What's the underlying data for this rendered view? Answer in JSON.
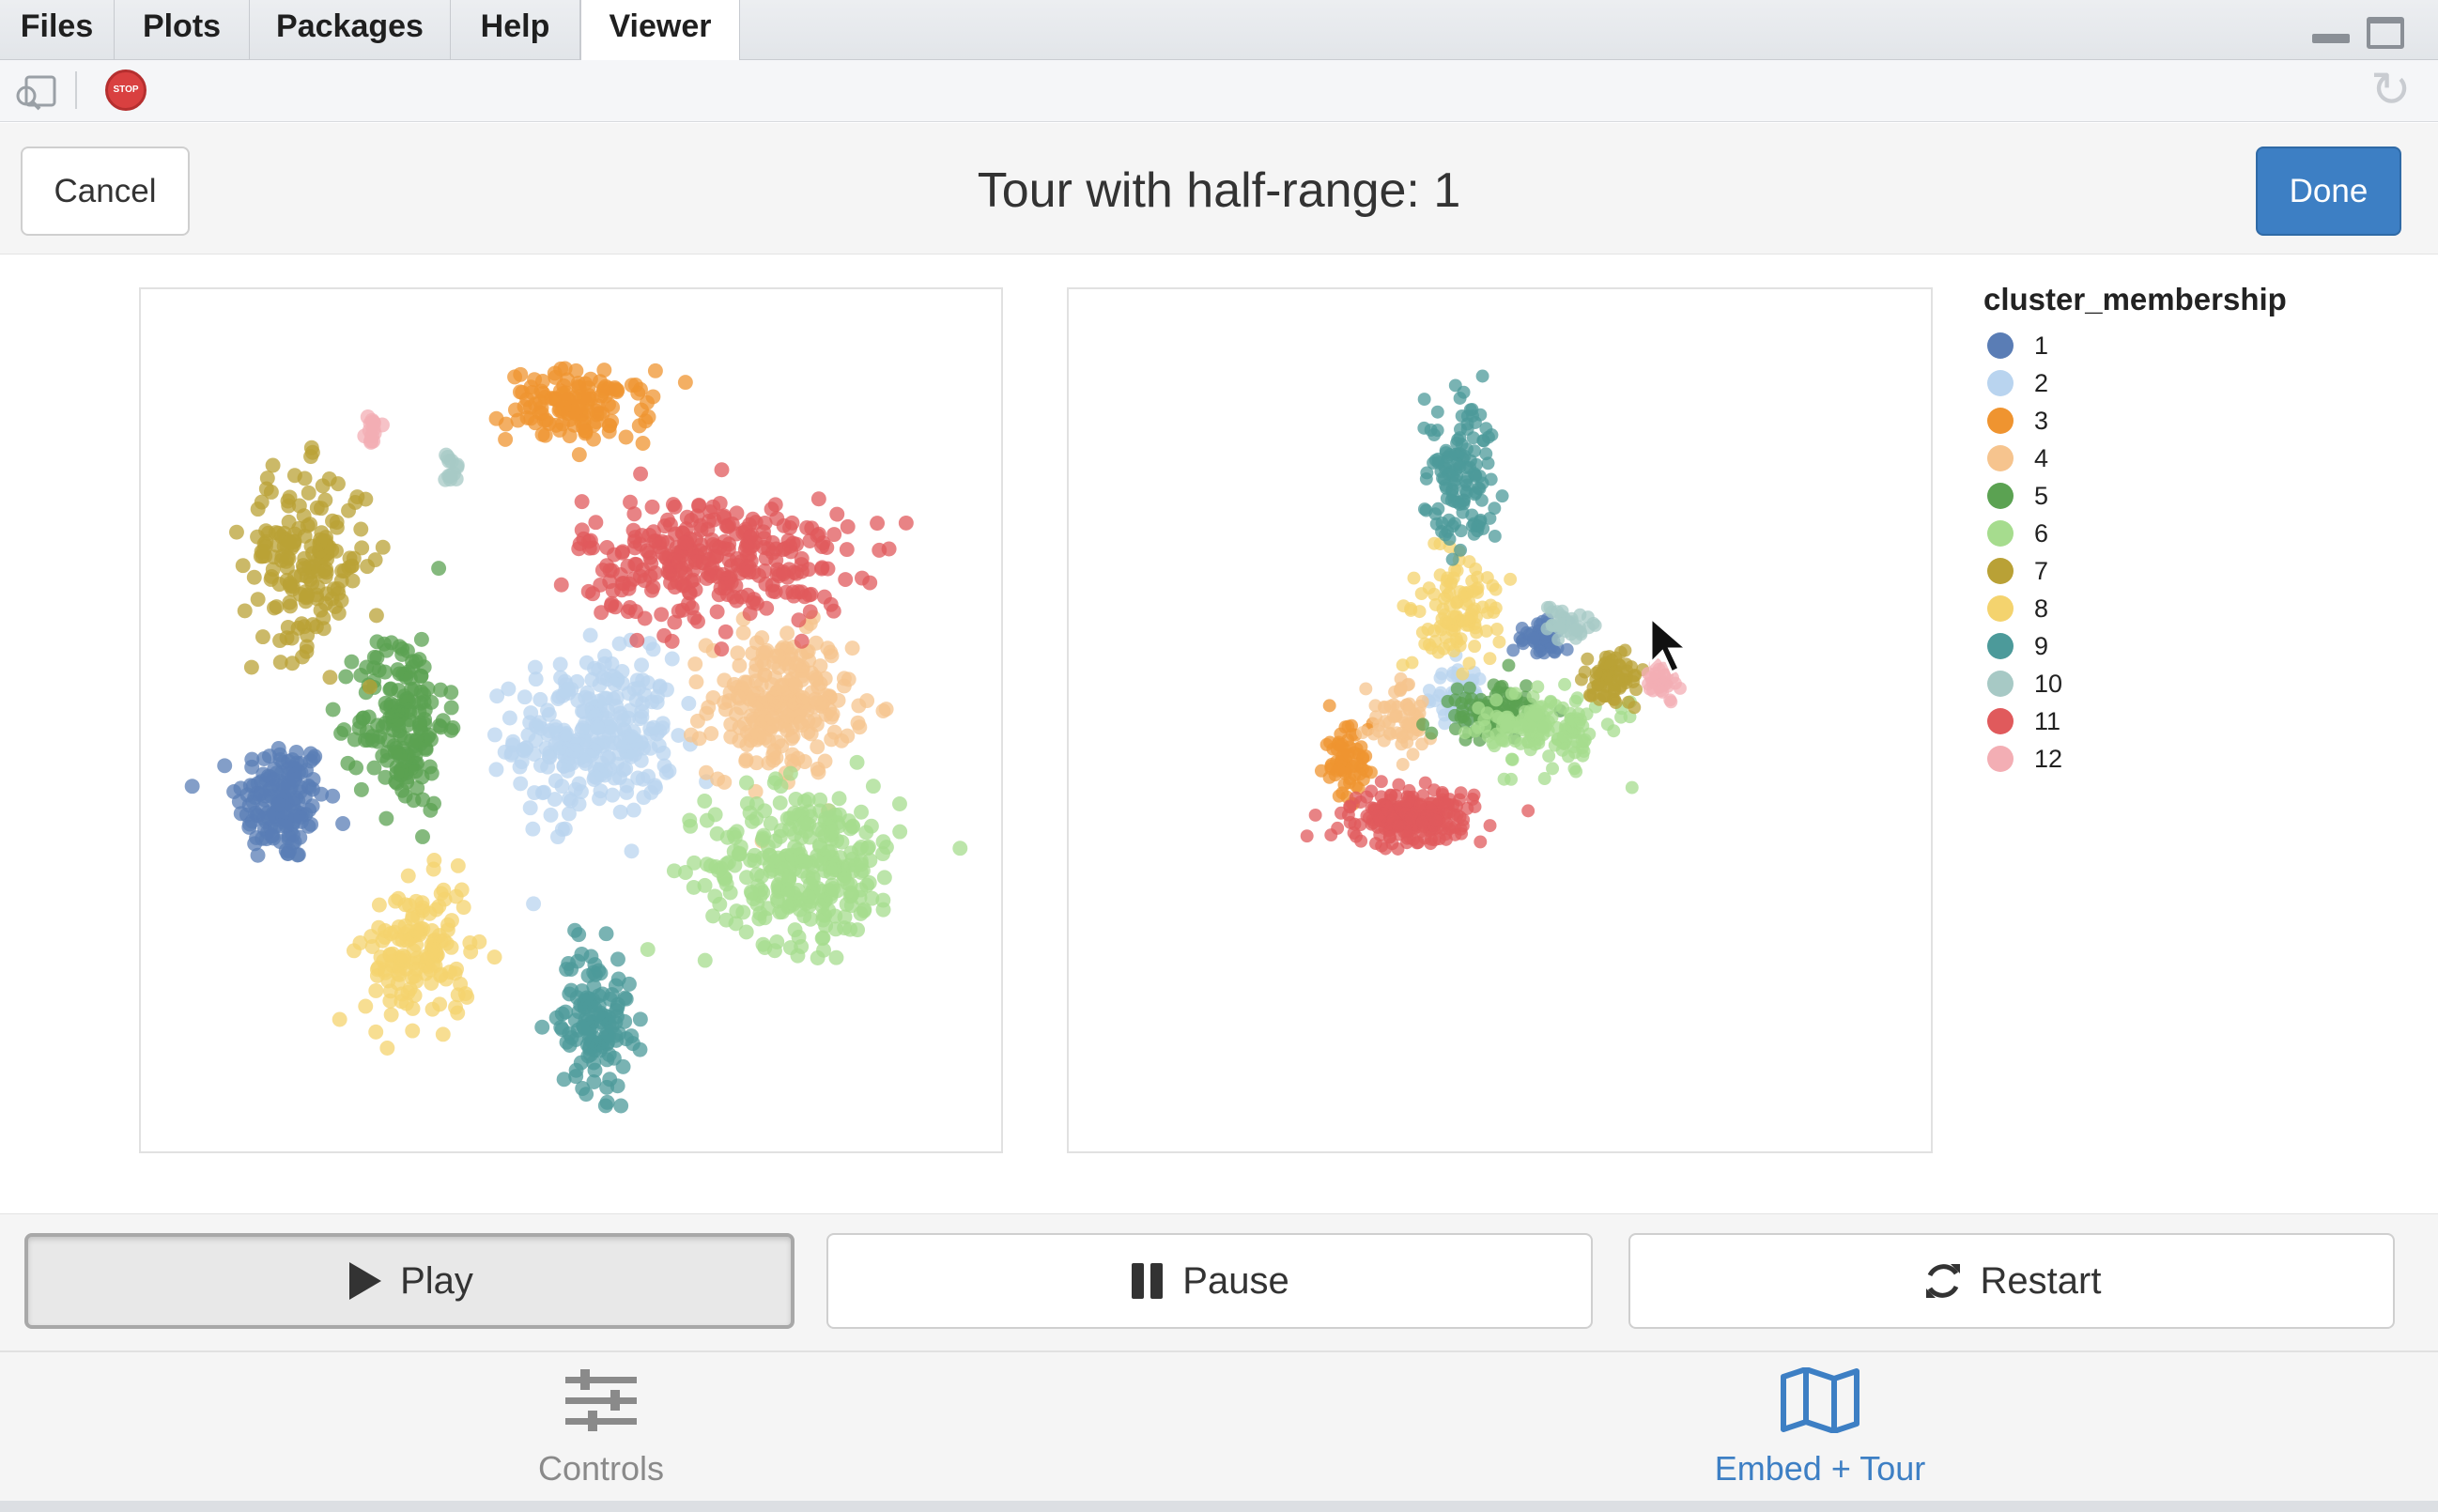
{
  "tabs": [
    {
      "label": "Files"
    },
    {
      "label": "Plots"
    },
    {
      "label": "Packages"
    },
    {
      "label": "Help"
    },
    {
      "label": "Viewer",
      "active": true
    }
  ],
  "header": {
    "title": "Tour with half-range: 1",
    "cancel_label": "Cancel",
    "done_label": "Done"
  },
  "legend": {
    "title": "cluster_membership",
    "items": [
      {
        "label": "1",
        "color": "#5a7db5"
      },
      {
        "label": "2",
        "color": "#b9d4ef"
      },
      {
        "label": "3",
        "color": "#ef9430"
      },
      {
        "label": "4",
        "color": "#f6c48e"
      },
      {
        "label": "5",
        "color": "#5ba252"
      },
      {
        "label": "6",
        "color": "#a6dc8e"
      },
      {
        "label": "7",
        "color": "#b9a136"
      },
      {
        "label": "8",
        "color": "#f4d36e"
      },
      {
        "label": "9",
        "color": "#4c9a9a"
      },
      {
        "label": "10",
        "color": "#a7c9c5"
      },
      {
        "label": "11",
        "color": "#e05a5c"
      },
      {
        "label": "12",
        "color": "#f3aeb4"
      }
    ]
  },
  "controls": {
    "play_label": "Play",
    "pause_label": "Pause",
    "restart_label": "Restart"
  },
  "nav": {
    "controls_label": "Controls",
    "embed_label": "Embed + Tour",
    "active": "embed"
  },
  "chart_data": [
    {
      "type": "scatter",
      "title": "",
      "xlabel": "",
      "ylabel": "",
      "x_range": [
        0,
        100
      ],
      "y_range": [
        0,
        100
      ],
      "grid": false,
      "legend": "none",
      "clusters": [
        {
          "name": "1",
          "x": 14,
          "y": 40,
          "sx": 5,
          "sy": 7,
          "n": 160
        },
        {
          "name": "2",
          "x": 53,
          "y": 48,
          "sx": 9,
          "sy": 9,
          "n": 280
        },
        {
          "name": "3",
          "x": 51,
          "y": 89,
          "sx": 8,
          "sy": 4,
          "n": 130
        },
        {
          "name": "4",
          "x": 76,
          "y": 52,
          "sx": 8,
          "sy": 8,
          "n": 240
        },
        {
          "name": "5",
          "x": 29,
          "y": 50,
          "sx": 5,
          "sy": 10,
          "n": 180
        },
        {
          "name": "6",
          "x": 79,
          "y": 32,
          "sx": 11,
          "sy": 9,
          "n": 300
        },
        {
          "name": "7",
          "x": 17,
          "y": 70,
          "sx": 7,
          "sy": 10,
          "n": 180
        },
        {
          "name": "8",
          "x": 31,
          "y": 21,
          "sx": 6,
          "sy": 8,
          "n": 150
        },
        {
          "name": "9",
          "x": 53,
          "y": 13,
          "sx": 4,
          "sy": 8,
          "n": 130
        },
        {
          "name": "10",
          "x": 35,
          "y": 81,
          "sx": 1,
          "sy": 2,
          "n": 12
        },
        {
          "name": "11",
          "x": 68,
          "y": 70,
          "sx": 15,
          "sy": 7,
          "n": 320
        },
        {
          "name": "12",
          "x": 25,
          "y": 86,
          "sx": 1,
          "sy": 2,
          "n": 14
        }
      ]
    },
    {
      "type": "scatter",
      "title": "",
      "xlabel": "",
      "ylabel": "",
      "x_range": [
        0,
        100
      ],
      "y_range": [
        0,
        100
      ],
      "grid": false,
      "legend": "right",
      "clusters": [
        {
          "name": "1",
          "x": 55,
          "y": 60,
          "sx": 3,
          "sy": 2,
          "n": 50
        },
        {
          "name": "2",
          "x": 45,
          "y": 53,
          "sx": 3,
          "sy": 3,
          "n": 70
        },
        {
          "name": "3",
          "x": 31,
          "y": 45,
          "sx": 3,
          "sy": 4,
          "n": 70
        },
        {
          "name": "4",
          "x": 38,
          "y": 50,
          "sx": 4,
          "sy": 4,
          "n": 60
        },
        {
          "name": "5",
          "x": 49,
          "y": 51,
          "sx": 6,
          "sy": 3,
          "n": 100
        },
        {
          "name": "6",
          "x": 56,
          "y": 49,
          "sx": 7,
          "sy": 4,
          "n": 150
        },
        {
          "name": "7",
          "x": 64,
          "y": 55,
          "sx": 3,
          "sy": 3,
          "n": 70
        },
        {
          "name": "8",
          "x": 45,
          "y": 64,
          "sx": 5,
          "sy": 6,
          "n": 110
        },
        {
          "name": "9",
          "x": 45,
          "y": 80,
          "sx": 4,
          "sy": 9,
          "n": 130
        },
        {
          "name": "10",
          "x": 58,
          "y": 62,
          "sx": 3,
          "sy": 2,
          "n": 35
        },
        {
          "name": "11",
          "x": 39,
          "y": 38,
          "sx": 7,
          "sy": 3,
          "n": 230
        },
        {
          "name": "12",
          "x": 70,
          "y": 55,
          "sx": 2,
          "sy": 2,
          "n": 30
        }
      ]
    }
  ]
}
